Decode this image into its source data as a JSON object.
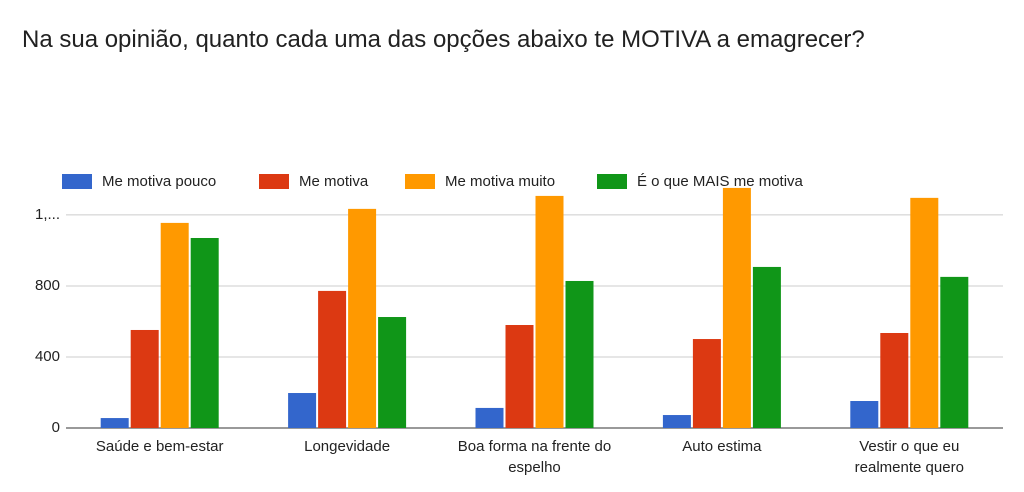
{
  "chart_data": {
    "type": "bar",
    "title": "Na sua opinião, quanto cada uma das opções abaixo te MOTIVA a emagrecer?",
    "categories": [
      "Saúde e bem-estar",
      "Longevidade",
      "Boa forma na frente do espelho",
      "Auto estima",
      "Vestir o que eu realmente quero"
    ],
    "series": [
      {
        "name": "Me motiva pouco",
        "color": "#3366cc",
        "values": [
          56,
          197,
          113,
          73,
          152
        ]
      },
      {
        "name": "Me motiva",
        "color": "#dc3912",
        "values": [
          552,
          772,
          580,
          501,
          535
        ]
      },
      {
        "name": "Me motiva muito",
        "color": "#ff9900",
        "values": [
          1155,
          1234,
          1307,
          1352,
          1296
        ]
      },
      {
        "name": "É o que MAIS me motiva",
        "color": "#109618",
        "values": [
          1070,
          625,
          828,
          907,
          851
        ]
      }
    ],
    "ylim": [
      0,
      1360
    ],
    "yticks": [
      0,
      400,
      800,
      {
        "value": 1200,
        "label": "1,..."
      }
    ],
    "grid": true,
    "legend": "top"
  }
}
